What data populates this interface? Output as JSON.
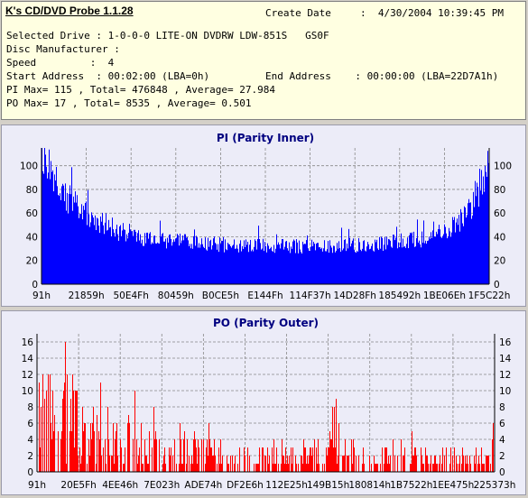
{
  "app": {
    "title": "K's CD/DVD Probe 1.1.28"
  },
  "info": {
    "create_date_label": "Create Date",
    "create_date_value": ":  4/30/2004 10:39:45 PM",
    "selected_drive_line": "Selected Drive : 1-0-0-0 LITE-ON DVDRW LDW-851S   GS0F",
    "disc_manufacturer_line": "Disc Manufacturer :",
    "speed_line": "Speed         :  4",
    "start_address_line": "Start Address  : 00:02:00 (LBA=0h)",
    "end_address_line": "End Address    : 00:00:00 (LBA=22D7A1h)",
    "pi_line": "PI Max= 115 , Total= 476848 , Average= 27.984",
    "po_line": "PO Max= 17 , Total= 8535 , Average= 0.501"
  },
  "colors": {
    "pi": "#0000ff",
    "po": "#ff0000",
    "plot_bg": "#ececf8"
  },
  "chart_data": [
    {
      "type": "bar",
      "title": "PI (Parity Inner)",
      "ylim": [
        0,
        115
      ],
      "yticks": [
        0,
        20,
        40,
        60,
        80,
        100
      ],
      "xticks": [
        "91h",
        "21859h",
        "50E4Fh",
        "80459h",
        "B0CE5h",
        "E144Fh",
        "114F37h",
        "14D28Fh",
        "185492h",
        "1BE06Eh",
        "1F5C22h"
      ],
      "grid": true,
      "series": [
        {
          "values": [
            112,
            96,
            84,
            74,
            67,
            62,
            57,
            53,
            49,
            46,
            44,
            42,
            40,
            39,
            38,
            37,
            37,
            36,
            36,
            35,
            35,
            34,
            34,
            34,
            33,
            33,
            33,
            33,
            33,
            33,
            33,
            33,
            33,
            33,
            33,
            34,
            34,
            34,
            35,
            35,
            36,
            37,
            38,
            39,
            41,
            43,
            46,
            50,
            56,
            66,
            86,
            110
          ]
        }
      ]
    },
    {
      "type": "bar",
      "title": "PO (Parity Outer)",
      "ylim": [
        0,
        17
      ],
      "yticks": [
        0,
        2,
        4,
        6,
        8,
        10,
        12,
        14,
        16
      ],
      "xticks": [
        "91h",
        "20E5Fh",
        "4EE46h",
        "7E023h",
        "ADE74h",
        "DF2E6h",
        "112E25h",
        "149B15h",
        "180814h",
        "1B7522h",
        "1EE475h",
        "225373h"
      ],
      "grid": true,
      "series": [
        {
          "values": [
            14,
            17,
            12,
            16,
            15,
            12,
            10,
            8,
            6,
            9,
            8,
            8,
            7,
            6,
            6,
            5,
            5,
            5,
            6,
            5,
            5,
            4,
            5,
            4,
            4,
            4,
            4,
            3,
            4,
            3,
            4,
            5,
            4,
            10,
            5,
            5,
            4,
            4,
            4,
            4,
            3,
            4,
            4,
            3,
            3,
            4,
            3,
            4,
            3,
            3,
            3,
            5
          ]
        }
      ]
    }
  ]
}
